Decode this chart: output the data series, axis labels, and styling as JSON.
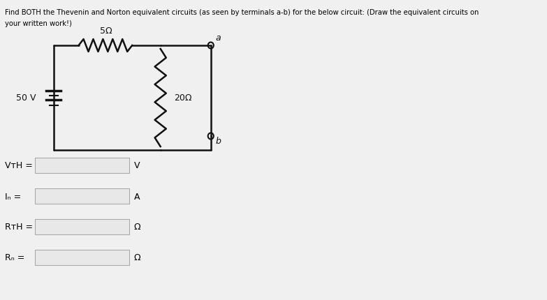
{
  "title_line1": "Find BOTH the Thevenin and Norton equivalent circuits (as seen by terminals a-b) for the below circuit: (Draw the equivalent circuits on",
  "title_line2": "your written work!)",
  "background_color": "#f0f0f0",
  "text_color": "#000000",
  "circuit": {
    "resistor_5_label": "5Ω",
    "resistor_20_label": "20Ω",
    "voltage_label": "50 V",
    "terminal_a": "a",
    "terminal_b": "b"
  },
  "fields": [
    {
      "label": "VᴛH =",
      "unit": "V"
    },
    {
      "label": "Iₙ =",
      "unit": "A"
    },
    {
      "label": "RᴛH =",
      "unit": "Ω"
    },
    {
      "label": "Rₙ =",
      "unit": "Ω"
    }
  ],
  "field_box_color": "#e8e8e8",
  "field_box_edge": "#aaaaaa"
}
